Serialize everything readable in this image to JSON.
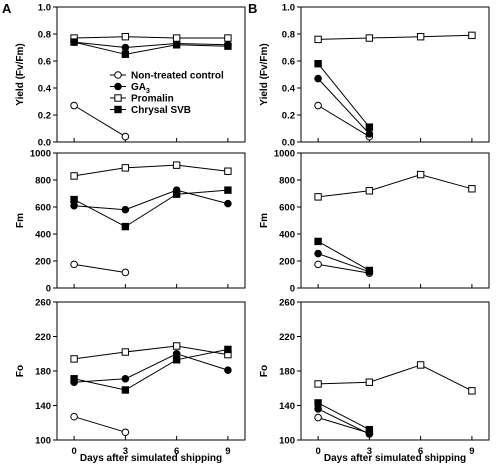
{
  "chart_data": [
    {
      "panel": "A",
      "type": "line",
      "ylabel": "Yield (Fv/Fm)",
      "ylim": [
        0,
        1.0
      ],
      "yticks": [
        0.0,
        0.2,
        0.4,
        0.6,
        0.8,
        1.0
      ],
      "xticks": [
        0,
        3,
        6,
        9
      ],
      "series": [
        {
          "name": "Non-treated control",
          "marker": "open-circle",
          "x": [
            0,
            3
          ],
          "y": [
            0.27,
            0.04
          ]
        },
        {
          "name": "GA3",
          "marker": "filled-circle",
          "x": [
            0,
            3,
            6,
            9
          ],
          "y": [
            0.74,
            0.7,
            0.73,
            0.72
          ]
        },
        {
          "name": "Promalin",
          "marker": "open-square",
          "x": [
            0,
            3,
            6,
            9
          ],
          "y": [
            0.77,
            0.78,
            0.77,
            0.77
          ]
        },
        {
          "name": "Chrysal SVB",
          "marker": "filled-square",
          "x": [
            0,
            3,
            6,
            9
          ],
          "y": [
            0.74,
            0.65,
            0.72,
            0.71
          ]
        }
      ]
    },
    {
      "panel": "B",
      "type": "line",
      "ylabel": "Yield (Fv/Fm)",
      "ylim": [
        0,
        1.0
      ],
      "yticks": [
        0.0,
        0.2,
        0.4,
        0.6,
        0.8,
        1.0
      ],
      "xticks": [
        0,
        3,
        6,
        9
      ],
      "series": [
        {
          "name": "Non-treated control",
          "marker": "open-circle",
          "x": [
            0,
            3
          ],
          "y": [
            0.27,
            0.04
          ]
        },
        {
          "name": "GA3",
          "marker": "filled-circle",
          "x": [
            0,
            3
          ],
          "y": [
            0.47,
            0.06
          ]
        },
        {
          "name": "Promalin",
          "marker": "open-square",
          "x": [
            0,
            3,
            6,
            9
          ],
          "y": [
            0.76,
            0.77,
            0.78,
            0.79
          ]
        },
        {
          "name": "Chrysal SVB",
          "marker": "filled-square",
          "x": [
            0,
            3
          ],
          "y": [
            0.58,
            0.11
          ]
        }
      ]
    },
    {
      "panel": "A",
      "type": "line",
      "ylabel": "Fm",
      "ylim": [
        0,
        1000
      ],
      "yticks": [
        0,
        200,
        400,
        600,
        800,
        1000
      ],
      "xticks": [
        0,
        3,
        6,
        9
      ],
      "series": [
        {
          "name": "Non-treated control",
          "marker": "open-circle",
          "x": [
            0,
            3
          ],
          "y": [
            175,
            115
          ]
        },
        {
          "name": "GA3",
          "marker": "filled-circle",
          "x": [
            0,
            3,
            6,
            9
          ],
          "y": [
            610,
            580,
            725,
            625
          ]
        },
        {
          "name": "Promalin",
          "marker": "open-square",
          "x": [
            0,
            3,
            6,
            9
          ],
          "y": [
            830,
            890,
            910,
            865
          ]
        },
        {
          "name": "Chrysal SVB",
          "marker": "filled-square",
          "x": [
            0,
            3,
            6,
            9
          ],
          "y": [
            655,
            455,
            695,
            725
          ]
        }
      ]
    },
    {
      "panel": "B",
      "type": "line",
      "ylabel": "Fm",
      "ylim": [
        0,
        1000
      ],
      "yticks": [
        0,
        200,
        400,
        600,
        800,
        1000
      ],
      "xticks": [
        0,
        3,
        6,
        9
      ],
      "series": [
        {
          "name": "Non-treated control",
          "marker": "open-circle",
          "x": [
            0,
            3
          ],
          "y": [
            175,
            110
          ]
        },
        {
          "name": "GA3",
          "marker": "filled-circle",
          "x": [
            0,
            3
          ],
          "y": [
            255,
            120
          ]
        },
        {
          "name": "Promalin",
          "marker": "open-square",
          "x": [
            0,
            3,
            6,
            9
          ],
          "y": [
            675,
            720,
            840,
            735
          ]
        },
        {
          "name": "Chrysal SVB",
          "marker": "filled-square",
          "x": [
            0,
            3
          ],
          "y": [
            345,
            130
          ]
        }
      ]
    },
    {
      "panel": "A",
      "type": "line",
      "ylabel": "Fo",
      "ylim": [
        100,
        260
      ],
      "yticks": [
        100,
        140,
        180,
        220,
        260
      ],
      "xticks": [
        0,
        3,
        6,
        9
      ],
      "series": [
        {
          "name": "Non-treated control",
          "marker": "open-circle",
          "x": [
            0,
            3
          ],
          "y": [
            127,
            109
          ]
        },
        {
          "name": "GA3",
          "marker": "filled-circle",
          "x": [
            0,
            3,
            6,
            9
          ],
          "y": [
            167,
            171,
            200,
            181
          ]
        },
        {
          "name": "Promalin",
          "marker": "open-square",
          "x": [
            0,
            3,
            6,
            9
          ],
          "y": [
            194,
            202,
            209,
            199
          ]
        },
        {
          "name": "Chrysal SVB",
          "marker": "filled-square",
          "x": [
            0,
            3,
            6,
            9
          ],
          "y": [
            171,
            158,
            193,
            205
          ]
        }
      ]
    },
    {
      "panel": "B",
      "type": "line",
      "ylabel": "Fo",
      "ylim": [
        100,
        260
      ],
      "yticks": [
        100,
        140,
        180,
        220,
        260
      ],
      "xticks": [
        0,
        3,
        6,
        9
      ],
      "series": [
        {
          "name": "Non-treated control",
          "marker": "open-circle",
          "x": [
            0,
            3
          ],
          "y": [
            126,
            108
          ]
        },
        {
          "name": "GA3",
          "marker": "filled-circle",
          "x": [
            0,
            3
          ],
          "y": [
            136,
            107
          ]
        },
        {
          "name": "Promalin",
          "marker": "open-square",
          "x": [
            0,
            3,
            6,
            9
          ],
          "y": [
            165,
            167,
            187,
            157
          ]
        },
        {
          "name": "Chrysal SVB",
          "marker": "filled-square",
          "x": [
            0,
            3
          ],
          "y": [
            143,
            112
          ]
        }
      ]
    }
  ],
  "panel_labels": [
    "A",
    "B"
  ],
  "xlabel": "Days after simulated shipping",
  "legend": {
    "placement": "panel A top-right",
    "entries": [
      {
        "label": "Non-treated control",
        "marker": "open-circle"
      },
      {
        "label": "GA3",
        "marker": "filled-circle"
      },
      {
        "label": "Promalin",
        "marker": "open-square"
      },
      {
        "label": "Chrysal SVB",
        "marker": "filled-square"
      }
    ]
  }
}
